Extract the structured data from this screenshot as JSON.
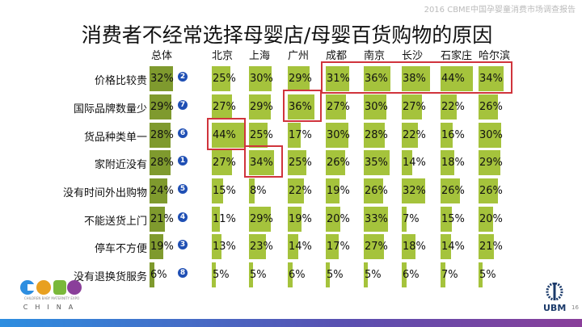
{
  "header_note": "2016 CBME中国孕婴童消费市场调查报告",
  "title": "消费者不经常选择母婴店/母婴百货购物的原因",
  "columns": [
    "总体",
    "北京",
    "上海",
    "广州",
    "成都",
    "南京",
    "长沙",
    "石家庄",
    "哈尔滨"
  ],
  "rows": [
    {
      "label": "价格比较贵",
      "rank": "2",
      "values": [
        32,
        25,
        30,
        29,
        31,
        36,
        38,
        44,
        34
      ]
    },
    {
      "label": "国际品牌数量少",
      "rank": "7",
      "values": [
        29,
        27,
        29,
        36,
        27,
        30,
        27,
        22,
        26
      ]
    },
    {
      "label": "货品种类单一",
      "rank": "6",
      "values": [
        28,
        44,
        25,
        17,
        30,
        28,
        22,
        16,
        30
      ]
    },
    {
      "label": "家附近没有",
      "rank": "1",
      "values": [
        28,
        27,
        34,
        25,
        26,
        35,
        14,
        18,
        29
      ]
    },
    {
      "label": "没有时间外出购物",
      "rank": "5",
      "values": [
        24,
        15,
        8,
        22,
        19,
        26,
        32,
        26,
        26
      ]
    },
    {
      "label": "不能送货上门",
      "rank": "4",
      "values": [
        21,
        11,
        29,
        19,
        20,
        33,
        7,
        15,
        20
      ]
    },
    {
      "label": "停车不方便",
      "rank": "3",
      "values": [
        19,
        13,
        23,
        14,
        17,
        27,
        18,
        14,
        21
      ]
    },
    {
      "label": "没有退换货服务",
      "rank": "8",
      "values": [
        6,
        5,
        5,
        6,
        5,
        5,
        6,
        7,
        5
      ]
    }
  ],
  "highlights": [
    {
      "row": 0,
      "cols": [
        4,
        8
      ]
    },
    {
      "row": 1,
      "cols": [
        3,
        3
      ]
    },
    {
      "row": 2,
      "cols": [
        1,
        1
      ]
    },
    {
      "row": 3,
      "cols": [
        2,
        2
      ]
    }
  ],
  "colors": {
    "total_bar": "#7f9a2e",
    "city_bar": "#a5c33c",
    "highlight": "#d0343c",
    "rank_badge": "#1f4fb4"
  },
  "logo": {
    "brand": "CBME",
    "tagline": "CHILDREN BABY MATERNITY EXPO",
    "country": "CHINA"
  },
  "ubm": "UBM",
  "page_number": "16"
}
